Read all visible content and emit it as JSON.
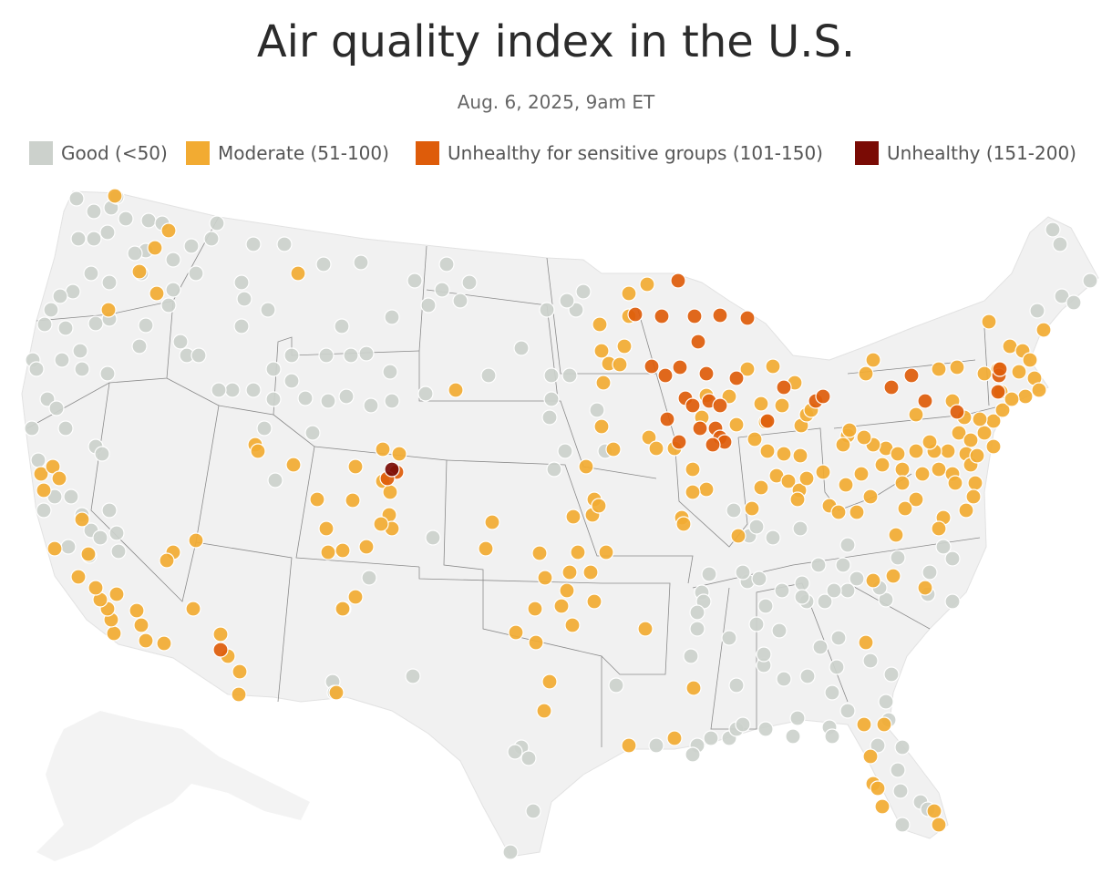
{
  "title": "Air quality index in the U.S.",
  "subtitle": "Aug. 6, 2025, 9am ET",
  "legend": [
    {
      "label": "Good (<50)",
      "color": "#ccd1cc"
    },
    {
      "label": "Moderate (51-100)",
      "color": "#f2ab32"
    },
    {
      "label": "Unhealthy for sensitive groups (101-150)",
      "color": "#de5c0a"
    },
    {
      "label": "Unhealthy (151-200)",
      "color": "#7a0b05"
    }
  ]
}
